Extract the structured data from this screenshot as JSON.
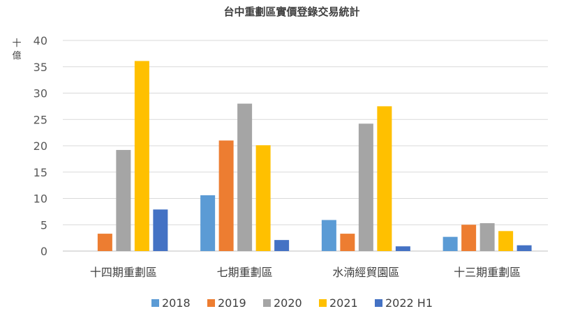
{
  "chart_data": {
    "type": "bar",
    "title": "台中重劃區實價登錄交易統計",
    "ylabel": "十億",
    "ylim": [
      0,
      40
    ],
    "yticks": [
      0,
      5,
      10,
      15,
      20,
      25,
      30,
      35,
      40
    ],
    "grid": true,
    "legend_position": "bottom",
    "categories": [
      "十四期重劃區",
      "七期重劃區",
      "水湳經貿園區",
      "十三期重劃區"
    ],
    "series": [
      {
        "name": "2018",
        "color": "#5B9BD5",
        "values": [
          0,
          10.6,
          5.9,
          2.7
        ]
      },
      {
        "name": "2019",
        "color": "#ED7D31",
        "values": [
          3.3,
          21.0,
          3.3,
          5.0
        ]
      },
      {
        "name": "2020",
        "color": "#A5A5A5",
        "values": [
          19.2,
          28.0,
          24.2,
          5.3
        ]
      },
      {
        "name": "2021",
        "color": "#FFC000",
        "values": [
          36.1,
          20.1,
          27.5,
          3.8
        ]
      },
      {
        "name": "2022 H1",
        "color": "#4472C4",
        "values": [
          7.9,
          2.1,
          0.9,
          1.1
        ]
      }
    ]
  }
}
